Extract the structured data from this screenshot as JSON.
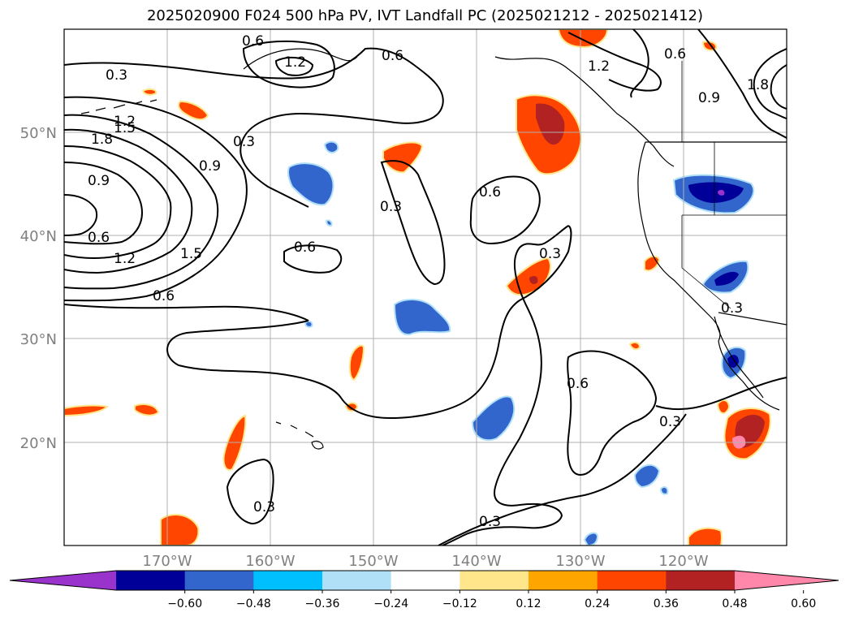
{
  "title": "2025020900 F024 500 hPa PV, IVT Landfall PC (2025021212 - 2025021412)",
  "lat_labels": [
    "50°N",
    "40°N",
    "30°N",
    "20°N"
  ],
  "lon_labels": [
    "170°W",
    "160°W",
    "150°W",
    "140°W",
    "130°W",
    "120°W"
  ],
  "colorbar": {
    "ticks": [
      "−0.60",
      "−0.48",
      "−0.36",
      "−0.24",
      "−0.12",
      "0.12",
      "0.24",
      "0.36",
      "0.48",
      "0.60"
    ],
    "colors": [
      "#9933cc",
      "#000099",
      "#3366cc",
      "#00bfff",
      "#b0e0f8",
      "#ffffff",
      "#ffe68a",
      "#ffa500",
      "#ff4500",
      "#b22222",
      "#ff88aa"
    ]
  },
  "contour_labels": [
    "0.3",
    "0.6",
    "0.9",
    "1.2",
    "1.5",
    "1.8"
  ],
  "map": {
    "projection": "plate-carree",
    "lon_range": [
      -177,
      -107
    ],
    "lat_range": [
      10,
      60
    ],
    "gridlines": true,
    "fields": [
      "500 hPa PV (black contours)",
      "IVT Landfall PC (shaded)"
    ]
  }
}
